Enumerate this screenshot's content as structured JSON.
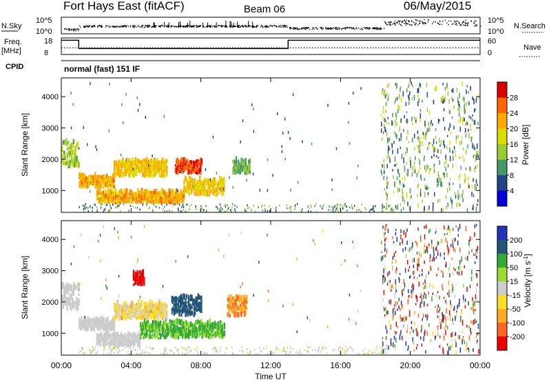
{
  "header": {
    "station": "Fort Hays East (fitACF)",
    "beam": "Beam 06",
    "date": "06/May/2015"
  },
  "strip_labels": {
    "nsky": "N.Sky",
    "freq": "Freq.",
    "freq_unit": "[MHz]",
    "cpid": "CPID",
    "nsearch": "N.Search",
    "nave": "Nave",
    "cpid_text": "normal (fast) 151 IF"
  },
  "nsky_ticks": [
    "10^5",
    "10^0"
  ],
  "nsearch_ticks": [
    "10^5",
    "10^0"
  ],
  "freq_ticks": [
    "18",
    "8"
  ],
  "nave_ticks": [
    "60",
    "0"
  ],
  "range_ticks": [
    "4000",
    "3000",
    "2000",
    "1000"
  ],
  "time_ticks": [
    "00:00",
    "04:00",
    "08:00",
    "12:00",
    "16:00",
    "20:00",
    "00:00"
  ],
  "xlabel": "Time UT",
  "ylabel": "Slant Range [km]",
  "power_bar": {
    "title": "Power [dB]",
    "ticks": [
      "28",
      "24",
      "20",
      "16",
      "12",
      "8",
      "4"
    ],
    "colors": [
      "#dd0000",
      "#ff6600",
      "#ffaa00",
      "#dddd00",
      "#99cc33",
      "#449966",
      "#224488",
      "#0000dd"
    ]
  },
  "velocity_bar": {
    "title": "Velocity [m s",
    "title_sup": "-1",
    "ticks": [
      "200",
      "100",
      "50",
      "15",
      "-15",
      "-50",
      "-100",
      "-200"
    ],
    "colors": [
      "#2233bb",
      "#225577",
      "#33aa33",
      "#99dd33",
      "#cccccc",
      "#ffdd22",
      "#ffaa22",
      "#ff6622",
      "#ee0000"
    ]
  },
  "chart_data": {
    "type": "heatmap",
    "x_unit": "hours UT",
    "xlim": [
      0,
      24
    ],
    "ylim": [
      300,
      4600
    ],
    "power_range_db": [
      0,
      32
    ],
    "velocity_range": [
      -250,
      250
    ],
    "power_bands": [
      {
        "t0": 0.0,
        "t1": 1.0,
        "r0": 1700,
        "r1": 2500,
        "db": 14
      },
      {
        "t0": 1.0,
        "t1": 3.0,
        "r0": 1050,
        "r1": 1400,
        "db": 22
      },
      {
        "t0": 3.0,
        "t1": 6.0,
        "r0": 1400,
        "r1": 1900,
        "db": 20
      },
      {
        "t0": 6.5,
        "t1": 8.0,
        "r0": 1500,
        "r1": 1900,
        "db": 28
      },
      {
        "t0": 2.0,
        "t1": 7.0,
        "r0": 550,
        "r1": 900,
        "db": 22
      },
      {
        "t0": 7.0,
        "t1": 9.3,
        "r0": 800,
        "r1": 1300,
        "db": 20
      },
      {
        "t0": 9.8,
        "t1": 10.8,
        "r0": 1500,
        "r1": 1900,
        "db": 12
      }
    ],
    "velocity_bands": [
      {
        "t0": 0.0,
        "t1": 1.0,
        "r0": 1700,
        "r1": 2500,
        "v": 0
      },
      {
        "t0": 1.0,
        "t1": 3.0,
        "r0": 1050,
        "r1": 1400,
        "v": 0
      },
      {
        "t0": 3.0,
        "t1": 6.0,
        "r0": 1400,
        "r1": 1900,
        "v": -20
      },
      {
        "t0": 6.3,
        "t1": 8.0,
        "r0": 1500,
        "r1": 2100,
        "v": 130
      },
      {
        "t0": 2.0,
        "t1": 4.5,
        "r0": 550,
        "r1": 900,
        "v": 0
      },
      {
        "t0": 4.5,
        "t1": 9.3,
        "r0": 800,
        "r1": 1300,
        "v": 35
      },
      {
        "t0": 9.5,
        "t1": 10.6,
        "r0": 1500,
        "r1": 2100,
        "v": -70
      },
      {
        "t0": 4.1,
        "t1": 4.7,
        "r0": 2500,
        "r1": 2900,
        "v": -200
      }
    ],
    "frequency_mhz": [
      {
        "t0": 0.0,
        "t1": 1.0,
        "f": 18
      },
      {
        "t0": 1.0,
        "t1": 13.0,
        "f": 11
      },
      {
        "t0": 13.0,
        "t1": 24.0,
        "f": 18
      }
    ],
    "nave_level": 28
  }
}
